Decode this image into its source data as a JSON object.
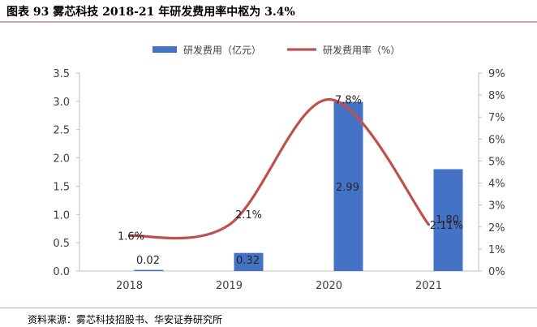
{
  "title": "图表 93  雾芯科技 2018-21 年研发费用率中枢为 3.4%",
  "source": "资料来源：雾芯科技招股书、华安证券研究所",
  "colors": {
    "bar": "#4472c4",
    "line": "#c0504d",
    "text": "#404040"
  },
  "chart_data": {
    "type": "bar",
    "categories": [
      "2018",
      "2019",
      "2020",
      "2021"
    ],
    "series": [
      {
        "name": "研发费用（亿元）",
        "type": "bar",
        "axis": "left",
        "values": [
          0.02,
          0.32,
          2.99,
          1.8
        ],
        "labels": [
          "0.02",
          "0.32",
          "2.99",
          "1.80"
        ]
      },
      {
        "name": "研发费用率（%）",
        "type": "line",
        "axis": "right",
        "values": [
          1.6,
          2.1,
          7.8,
          2.11
        ],
        "labels": [
          "1.6%",
          "2.1%",
          "7.8%",
          "2.11%"
        ]
      }
    ],
    "y_left": {
      "min": 0,
      "max": 3.5,
      "ticks": [
        "0.0",
        "0.5",
        "1.0",
        "1.5",
        "2.0",
        "2.5",
        "3.0",
        "3.5"
      ]
    },
    "y_right": {
      "min": 0,
      "max": 9,
      "ticks": [
        "0%",
        "1%",
        "2%",
        "3%",
        "4%",
        "5%",
        "6%",
        "7%",
        "8%",
        "9%"
      ]
    },
    "legend": "top-center",
    "grid": false
  }
}
